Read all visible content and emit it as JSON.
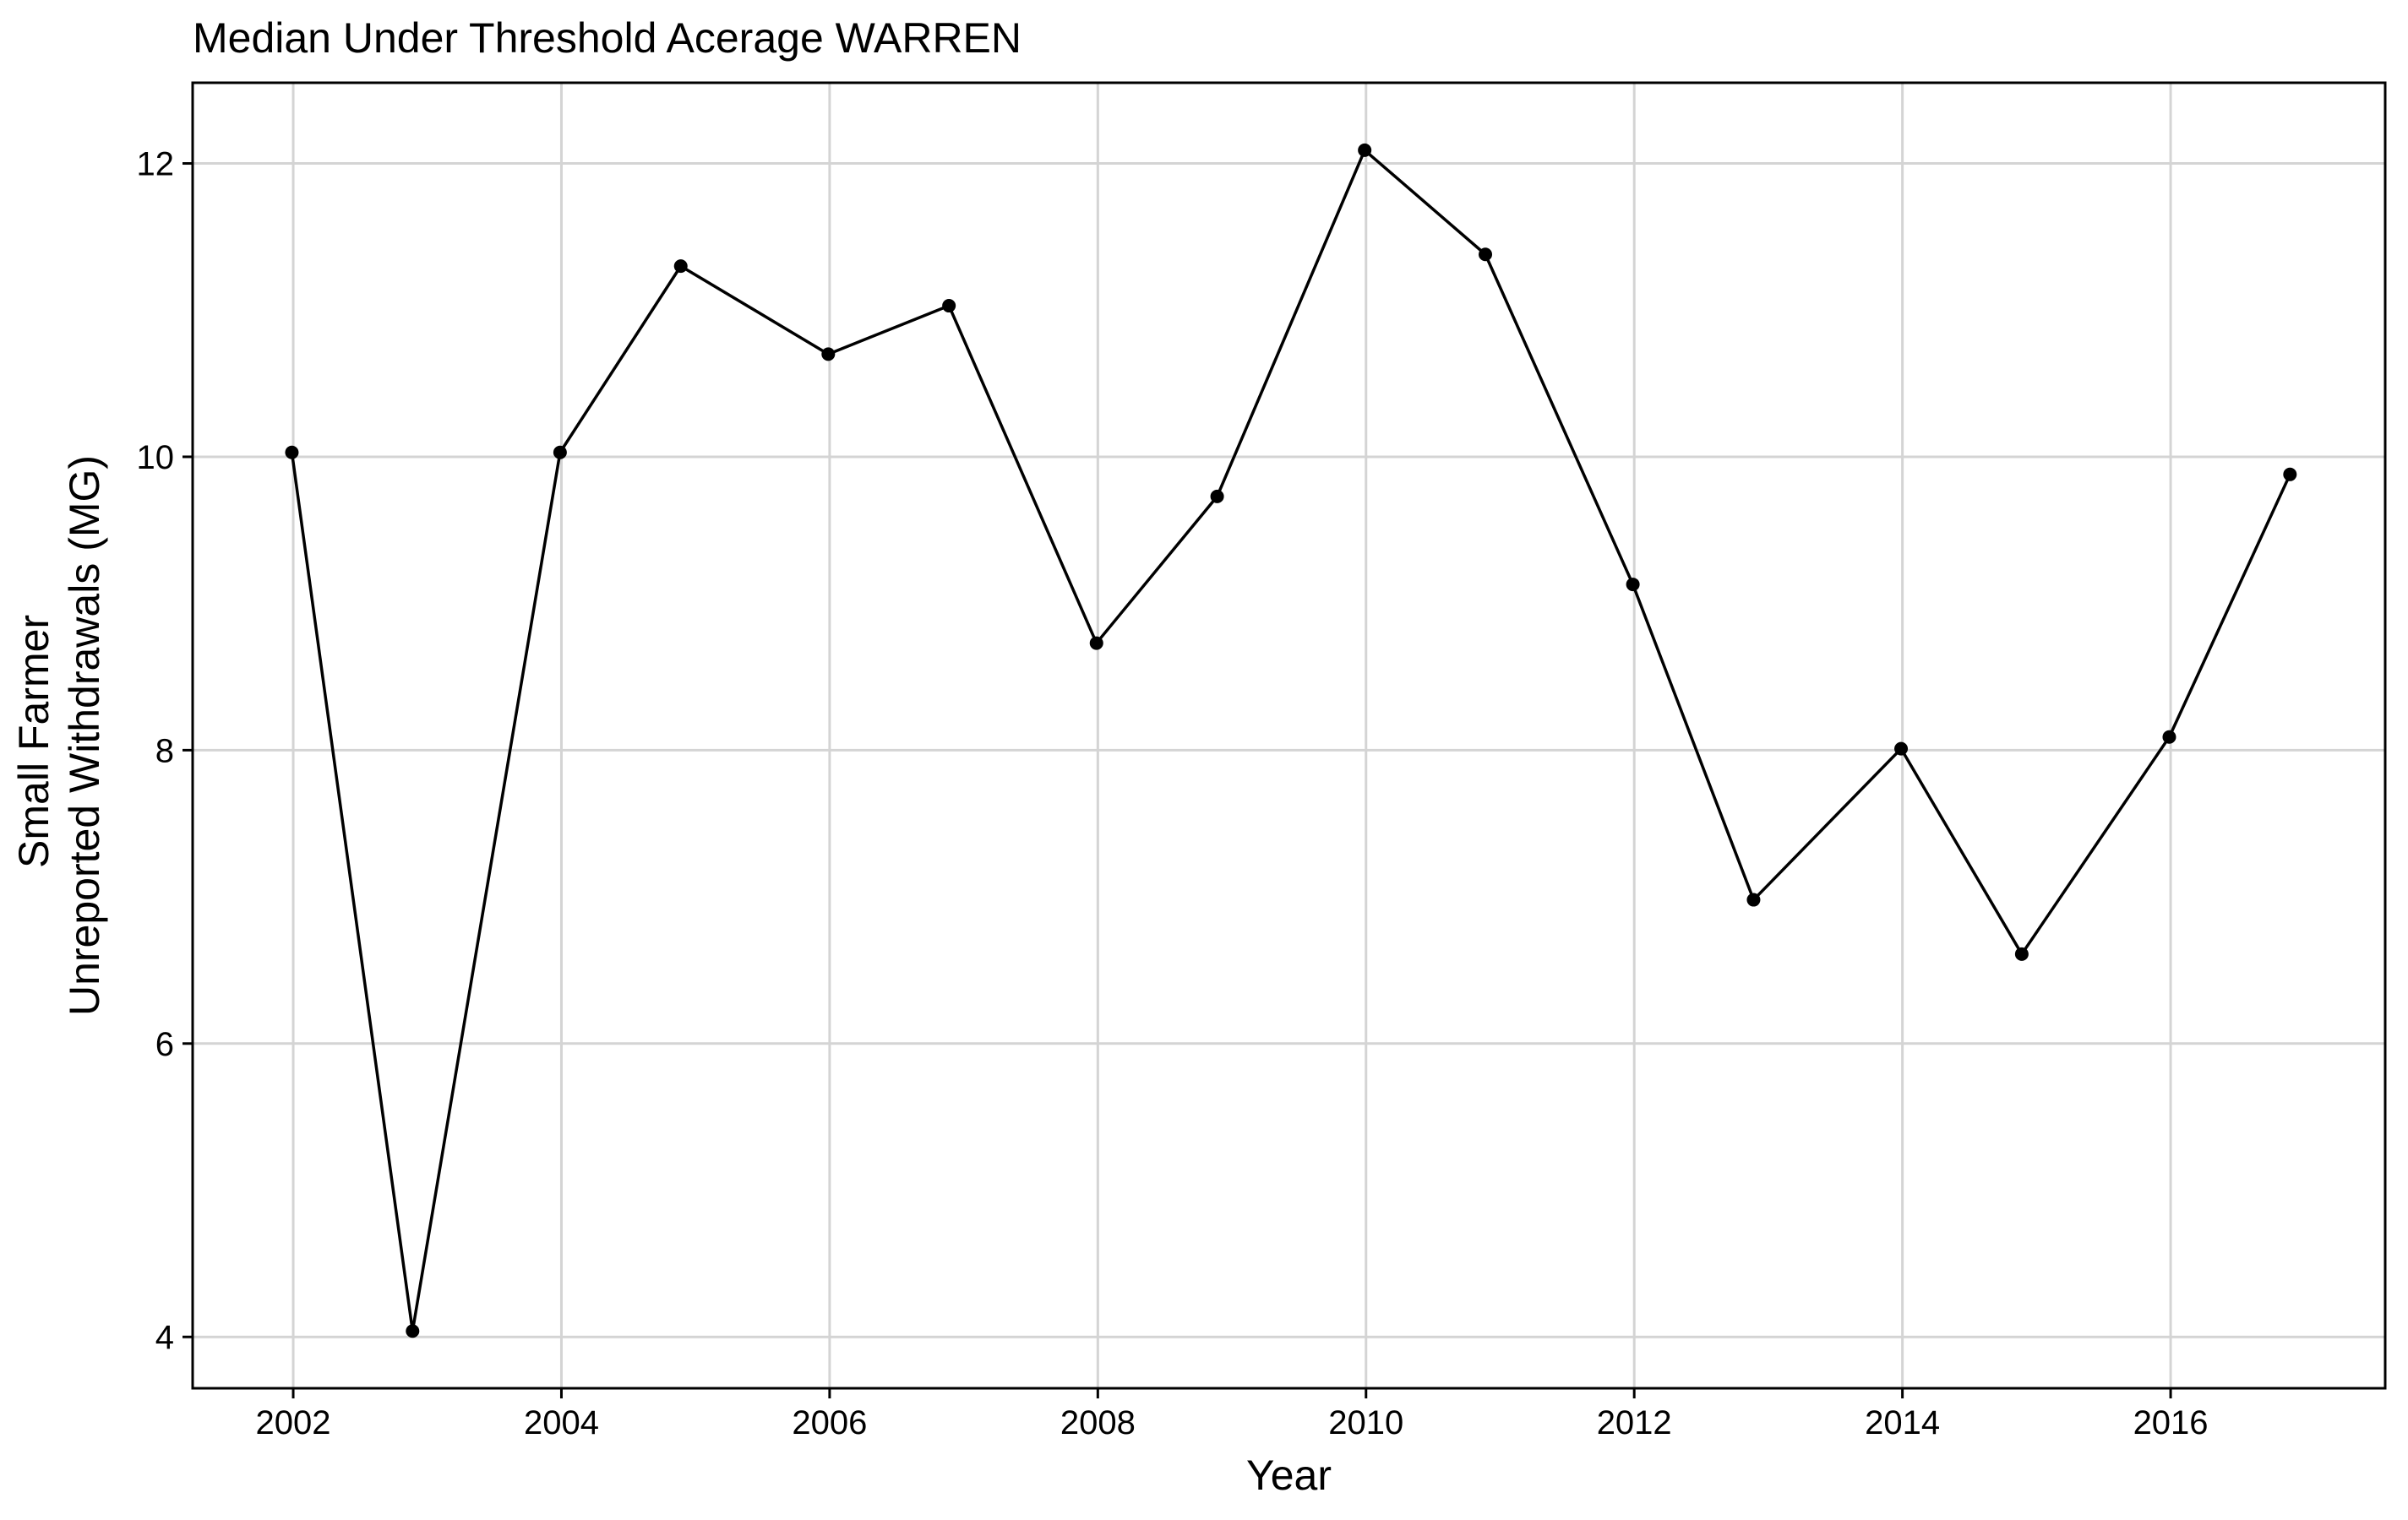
{
  "chart_data": {
    "type": "line",
    "title": "Median Under Threshold Acerage WARREN",
    "xlabel": "Year",
    "ylabel_lines": [
      "Small Farmer",
      "Unreported Withdrawals (MG)"
    ],
    "x": [
      2002,
      2003,
      2004,
      2005,
      2006,
      2007,
      2008,
      2009,
      2010,
      2011,
      2012,
      2013,
      2014,
      2015,
      2016,
      2017
    ],
    "x_actual": [
      2001.99,
      2002.89,
      2003.99,
      2004.89,
      2005.99,
      2006.89,
      2007.99,
      2008.89,
      2009.99,
      2010.89,
      2011.99,
      2012.89,
      2013.99,
      2014.89,
      2015.99,
      2016.89
    ],
    "series": [
      {
        "values": [
          10.03,
          4.04,
          10.03,
          11.3,
          10.7,
          11.03,
          8.73,
          9.73,
          12.09,
          11.38,
          9.13,
          6.98,
          8.01,
          6.61,
          8.09,
          9.88
        ]
      }
    ],
    "xlim": [
      2001.25,
      2017.6
    ],
    "ylim": [
      3.65,
      12.55
    ],
    "x_ticks": [
      2002,
      2004,
      2006,
      2008,
      2010,
      2012,
      2014,
      2016
    ],
    "x_tick_labels": [
      "2002",
      "2004",
      "2006",
      "2008",
      "2010",
      "2012",
      "2014",
      "2016"
    ],
    "y_ticks": [
      4,
      6,
      8,
      10,
      12
    ],
    "y_tick_labels": [
      "4",
      "6",
      "8",
      "10",
      "12"
    ],
    "grid": true,
    "legend": "none",
    "colors": {
      "line": "#000000",
      "grid": "#d4d4d4",
      "panel_border": "#000000"
    }
  }
}
